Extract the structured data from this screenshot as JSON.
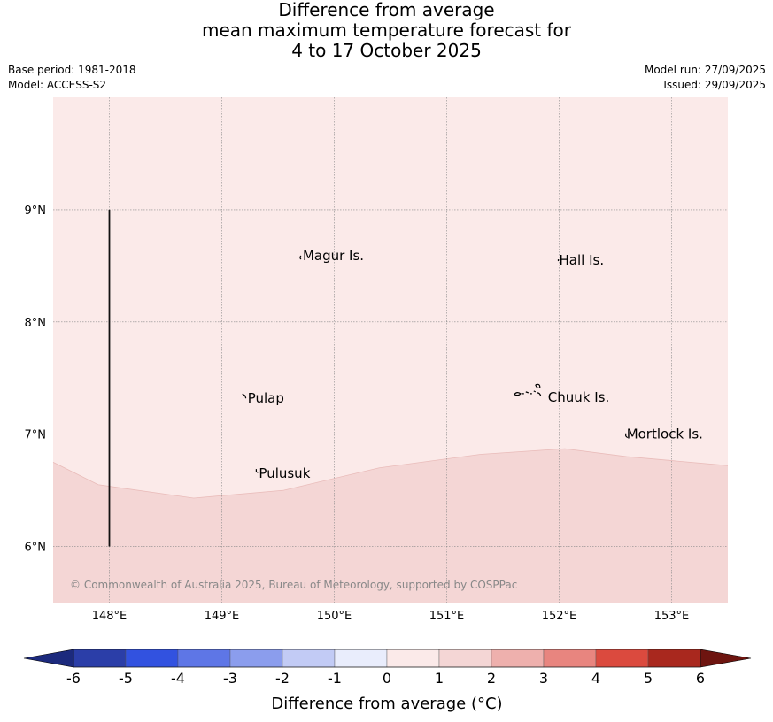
{
  "title": {
    "line1": "Difference from average",
    "line2": "mean maximum temperature forecast for",
    "line3": "4 to 17 October 2025"
  },
  "meta_left": {
    "base_period": "Base period: 1981-2018",
    "model": "Model: ACCESS-S2"
  },
  "meta_right": {
    "model_run": "Model run: 27/09/2025",
    "issued": "Issued: 29/09/2025"
  },
  "map": {
    "lon_range": [
      147.5,
      153.5
    ],
    "lat_range": [
      5.5,
      10.0
    ],
    "lon_ticks": [
      148,
      149,
      150,
      151,
      152,
      153
    ],
    "lon_tick_labels": [
      "148°E",
      "149°E",
      "150°E",
      "151°E",
      "152°E",
      "153°E"
    ],
    "lat_ticks": [
      6,
      7,
      8,
      9
    ],
    "lat_tick_labels": [
      "6°N",
      "7°N",
      "8°N",
      "9°N"
    ],
    "grid": true,
    "fill_colors": {
      "zero_to_one": "#fbeae9",
      "one_to_two": "#f4d6d5"
    },
    "boundary_1C": [
      [
        147.5,
        6.75
      ],
      [
        147.9,
        6.55
      ],
      [
        148.75,
        6.43
      ],
      [
        149.55,
        6.5
      ],
      [
        150.4,
        6.7
      ],
      [
        151.3,
        6.82
      ],
      [
        152.05,
        6.87
      ],
      [
        152.6,
        6.8
      ],
      [
        153.5,
        6.72
      ]
    ],
    "vertical_line": {
      "lon": 148.0,
      "lat_from": 6.0,
      "lat_to": 9.0
    },
    "places": [
      {
        "name": "Magur Is.",
        "lon": 149.72,
        "lat": 8.55
      },
      {
        "name": "Hall Is.",
        "lon": 152.0,
        "lat": 8.51
      },
      {
        "name": "Pulap",
        "lon": 149.23,
        "lat": 7.28
      },
      {
        "name": "Chuuk Is.",
        "lon": 151.9,
        "lat": 7.29
      },
      {
        "name": "Mortlock Is.",
        "lon": 152.6,
        "lat": 6.96
      },
      {
        "name": "Pulusuk",
        "lon": 149.33,
        "lat": 6.61
      }
    ],
    "copyright": "© Commonwealth of Australia 2025, Bureau of Meteorology, supported by COSPPac"
  },
  "colorbar": {
    "label": "Difference from average (°C)",
    "tick_labels": [
      "-6",
      "-5",
      "-4",
      "-3",
      "-2",
      "-1",
      "0",
      "1",
      "2",
      "3",
      "4",
      "5",
      "6"
    ],
    "bins": [
      {
        "from": -6,
        "to": -5,
        "color": "#2b3ea8"
      },
      {
        "from": -5,
        "to": -4,
        "color": "#3252e0"
      },
      {
        "from": -4,
        "to": -3,
        "color": "#5e76e6"
      },
      {
        "from": -3,
        "to": -2,
        "color": "#8b9ded"
      },
      {
        "from": -2,
        "to": -1,
        "color": "#c2cbf5"
      },
      {
        "from": -1,
        "to": 0,
        "color": "#e9edfc"
      },
      {
        "from": 0,
        "to": 1,
        "color": "#fbeae9"
      },
      {
        "from": 1,
        "to": 2,
        "color": "#f4d6d5"
      },
      {
        "from": 2,
        "to": 3,
        "color": "#eeb0ad"
      },
      {
        "from": 3,
        "to": 4,
        "color": "#e8857f"
      },
      {
        "from": 4,
        "to": 5,
        "color": "#db4a3e"
      },
      {
        "from": 5,
        "to": 6,
        "color": "#a9281e"
      }
    ],
    "under_color": "#1c2a7d",
    "over_color": "#6e1510"
  }
}
